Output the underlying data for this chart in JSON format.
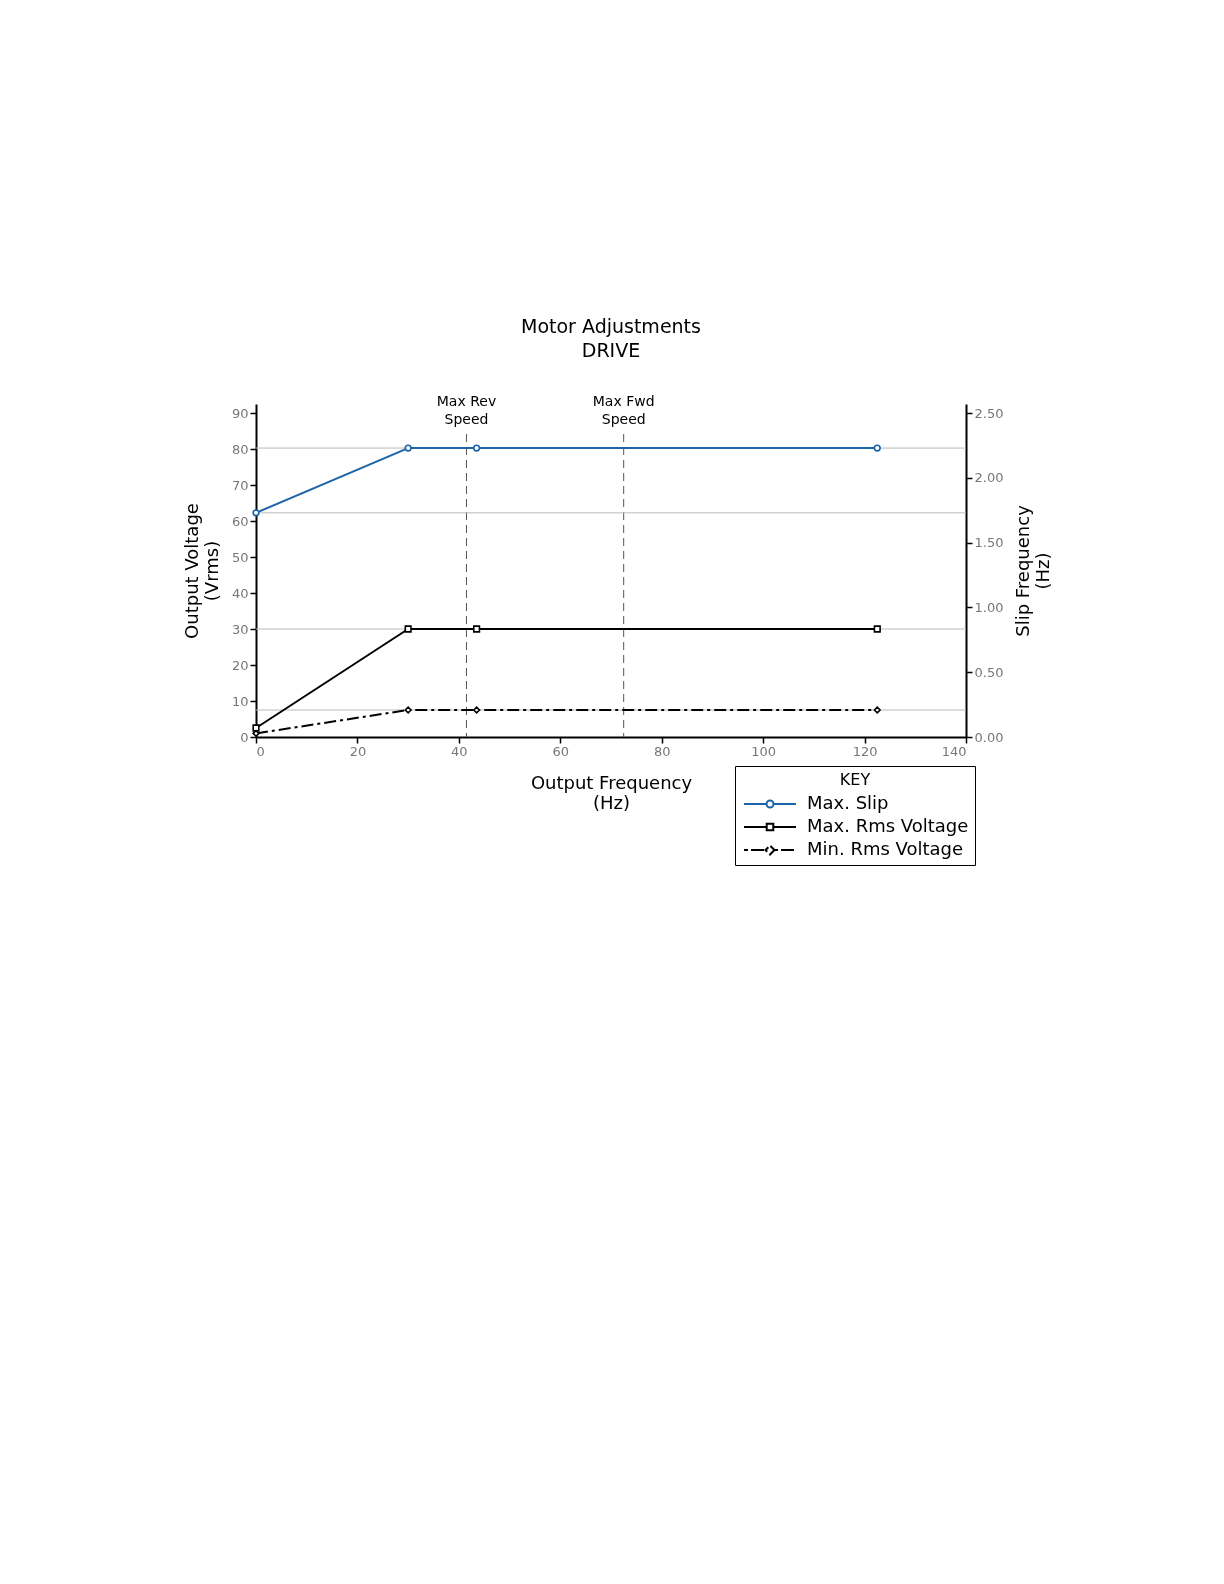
{
  "chart_data": {
    "type": "line",
    "title": "Motor Adjustments",
    "subtitle": "DRIVE",
    "xlabel": "Output Frequency\n(Hz)",
    "ylabel": "Output Voltage\n(Vrms)",
    "y2label": "Slip Frequency\n(Hz)",
    "legend_title": "KEY",
    "x": [
      0,
      30,
      43.5,
      122.5
    ],
    "series": [
      {
        "name": "Max. Slip",
        "color": "#1c64a8",
        "axis": "y2",
        "marker": "circle",
        "line_style": "solid",
        "values": [
          1.73,
          2.23,
          2.23,
          2.23
        ]
      },
      {
        "name": "Max. Rms Voltage",
        "color": "#000000",
        "marker": "square",
        "line_style": "solid",
        "values": [
          2.5,
          30,
          30,
          30
        ]
      },
      {
        "name": "Min. Rms Voltage",
        "color": "#000000",
        "marker": "diamond",
        "line_style": "dashdot",
        "values": [
          1,
          7.5,
          7.5,
          7.5
        ]
      }
    ],
    "xlim": [
      0,
      140
    ],
    "xticks": [
      0,
      20,
      40,
      60,
      80,
      100,
      120,
      140
    ],
    "ylim": [
      0,
      92.5
    ],
    "yticks": [
      0,
      10,
      20,
      30,
      40,
      50,
      60,
      70,
      80,
      90
    ],
    "y2lim": [
      0,
      2.57
    ],
    "y2ticks": [
      {
        "value": 0,
        "label": "0.00"
      },
      {
        "value": 0.5,
        "label": "0.50"
      },
      {
        "value": 1,
        "label": "1.00"
      },
      {
        "value": 1.5,
        "label": "1.50"
      },
      {
        "value": 2,
        "label": "2.00"
      },
      {
        "value": 2.5,
        "label": "2.50"
      }
    ],
    "ref_lines": [
      {
        "axis": "x",
        "value": 41.5,
        "label": "Max Rev\nSpeed",
        "color": "#555555",
        "line_style": "dashed"
      },
      {
        "axis": "x",
        "value": 72.5,
        "label": "Max Fwd\nSpeed",
        "color": "#555555",
        "line_style": "dashed"
      },
      {
        "axis": "y2",
        "value": 2.23,
        "color": "#bbbbbb",
        "line_style": "solid"
      },
      {
        "axis": "y2",
        "value": 1.73,
        "color": "#bbbbbb",
        "line_style": "solid"
      },
      {
        "axis": "y",
        "value": 30,
        "color": "#bbbbbb",
        "line_style": "solid"
      },
      {
        "axis": "y",
        "value": 7.5,
        "color": "#bbbbbb",
        "line_style": "solid"
      }
    ],
    "legend": "bottom right",
    "grid": false
  }
}
